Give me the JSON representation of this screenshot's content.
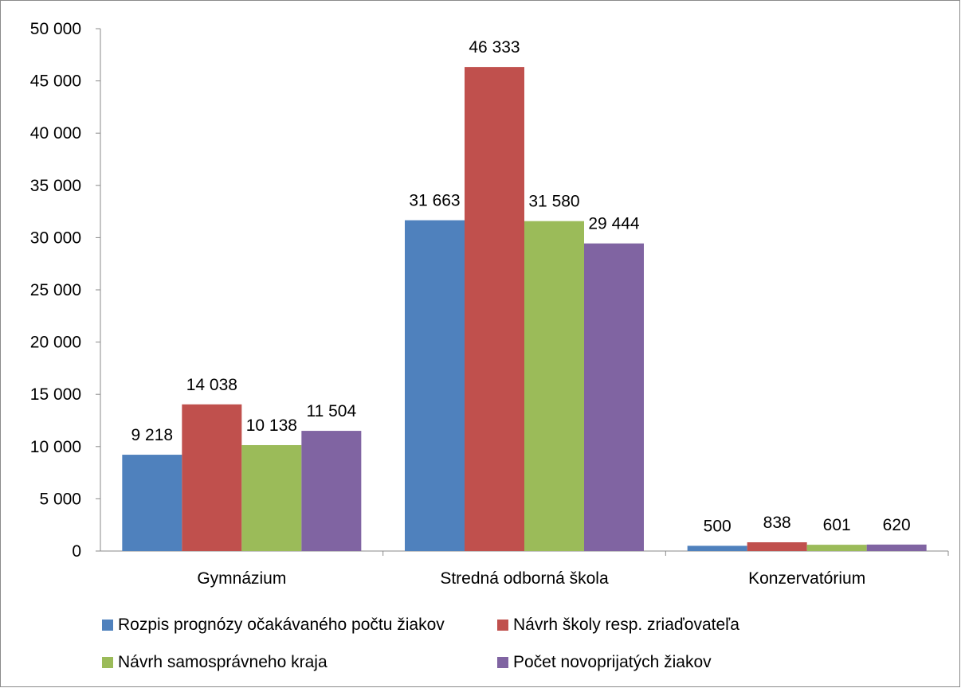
{
  "chart_data": {
    "type": "bar",
    "categories": [
      "Gymnázium",
      "Stredná odborná škola",
      "Konzervatórium"
    ],
    "series": [
      {
        "name": "Rozpis prognózy očakávaného počtu žiakov",
        "color": "#4F81BD",
        "values": [
          9218,
          31663,
          500
        ],
        "labels": [
          "9 218",
          "31 663",
          "500"
        ]
      },
      {
        "name": "Návrh školy resp. zriaďovateľa",
        "color": "#C0504D",
        "values": [
          14038,
          46333,
          838
        ],
        "labels": [
          "14 038",
          "46 333",
          "838"
        ]
      },
      {
        "name": "Návrh samosprávneho kraja",
        "color": "#9BBB59",
        "values": [
          10138,
          31580,
          601
        ],
        "labels": [
          "10 138",
          "31 580",
          "601"
        ]
      },
      {
        "name": "Počet novoprijatých žiakov",
        "color": "#8064A2",
        "values": [
          11504,
          29444,
          620
        ],
        "labels": [
          "11 504",
          "29 444",
          "620"
        ]
      }
    ],
    "ylim": [
      0,
      50000
    ],
    "yticks": [
      0,
      5000,
      10000,
      15000,
      20000,
      25000,
      30000,
      35000,
      40000,
      45000,
      50000
    ],
    "ytick_labels": [
      "0",
      "5 000",
      "10 000",
      "15 000",
      "20 000",
      "25 000",
      "30 000",
      "35 000",
      "40 000",
      "45 000",
      "50 000"
    ],
    "grid": false,
    "legend_position": "bottom",
    "title": "",
    "xlabel": "",
    "ylabel": ""
  }
}
